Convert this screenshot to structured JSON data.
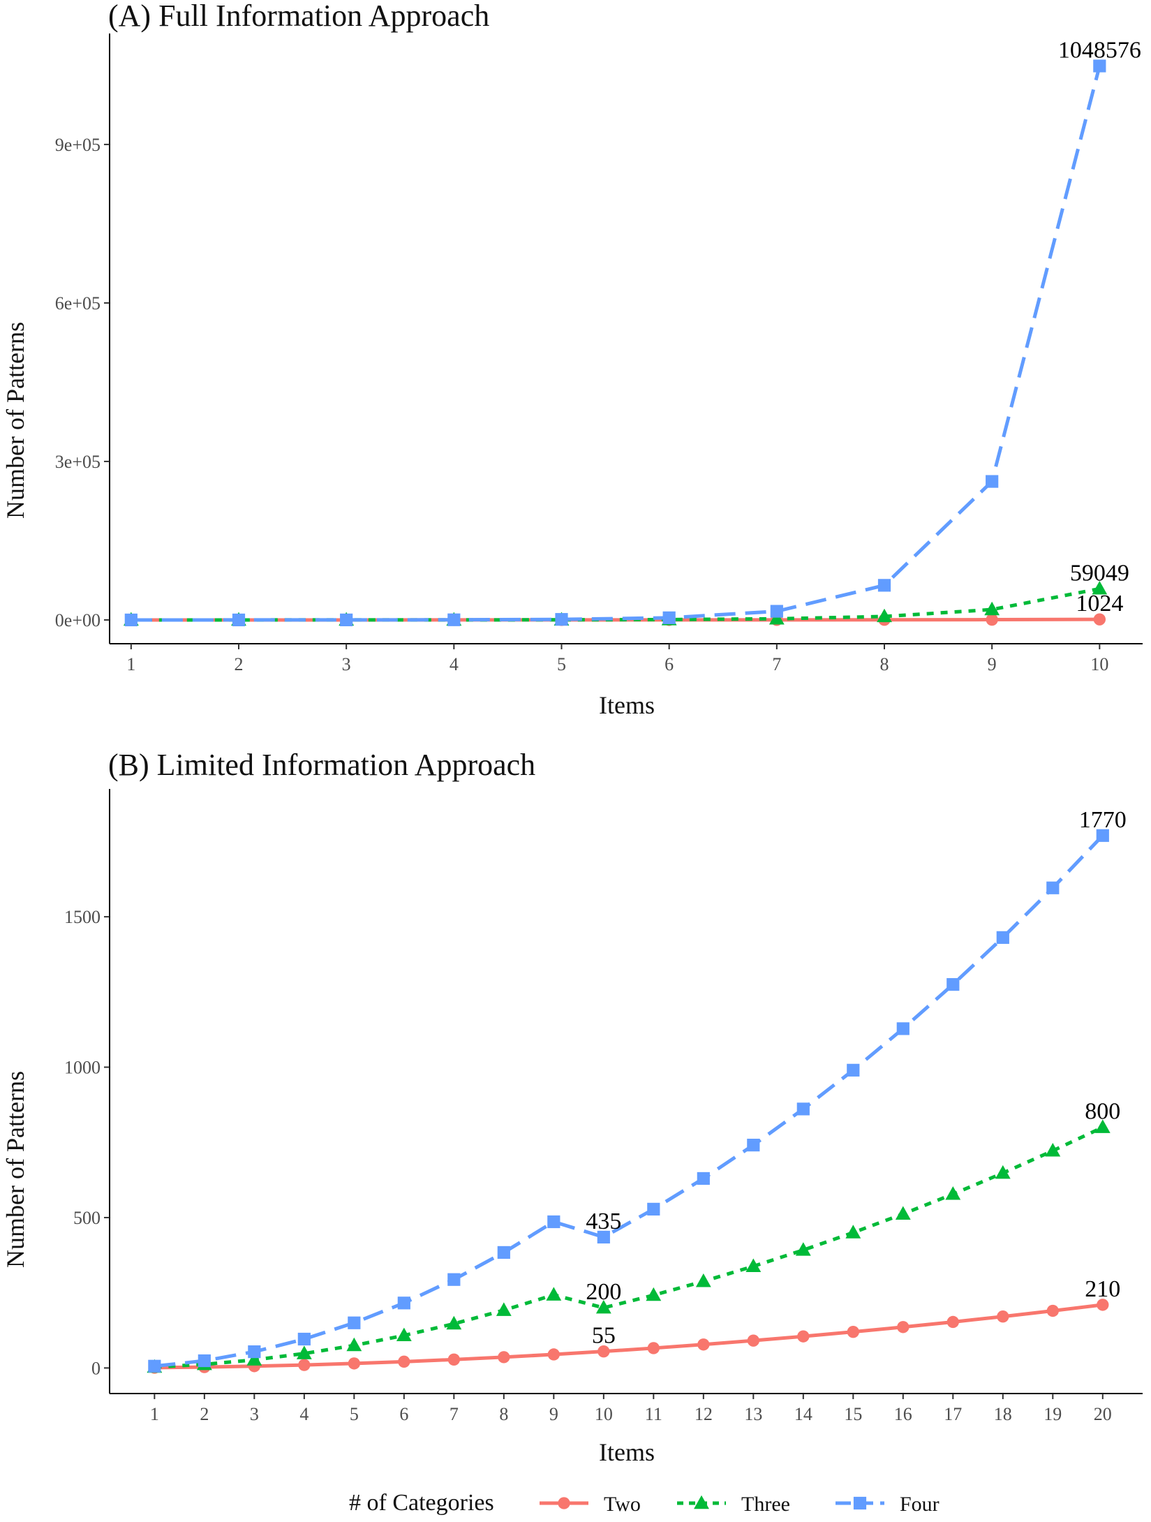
{
  "chart_data": [
    {
      "type": "line",
      "title": "(A) Full Information Approach",
      "xlabel": "Items",
      "ylabel": "Number of Patterns",
      "x": [
        1,
        2,
        3,
        4,
        5,
        6,
        7,
        8,
        9,
        10
      ],
      "xlim": [
        0.8,
        10.4
      ],
      "ylim": [
        -45000,
        1110000
      ],
      "yticks": [
        0,
        300000,
        600000,
        900000
      ],
      "ytick_labels": [
        "0e+00",
        "3e+05",
        "6e+05",
        "9e+05"
      ],
      "grid": false,
      "series": [
        {
          "name": "Two",
          "color": "#F8766D",
          "dash": "solid",
          "marker": "circle",
          "values": [
            2,
            4,
            8,
            16,
            32,
            64,
            128,
            256,
            512,
            1024
          ]
        },
        {
          "name": "Three",
          "color": "#00BA38",
          "dash": "dotted",
          "marker": "triangle",
          "values": [
            3,
            9,
            27,
            81,
            243,
            729,
            2187,
            6561,
            19683,
            59049
          ]
        },
        {
          "name": "Four",
          "color": "#619CFF",
          "dash": "dashed",
          "marker": "square",
          "values": [
            4,
            16,
            64,
            256,
            1024,
            4096,
            16384,
            65536,
            262144,
            1048576
          ]
        }
      ],
      "annotations": [
        {
          "series": "Four",
          "x": 10,
          "text": "1048576"
        },
        {
          "series": "Three",
          "x": 10,
          "text": "59049"
        },
        {
          "series": "Two",
          "x": 10,
          "text": "1024"
        }
      ]
    },
    {
      "type": "line",
      "title": "(B) Limited Information Approach",
      "xlabel": "Items",
      "ylabel": "Number of Patterns",
      "x": [
        1,
        2,
        3,
        4,
        5,
        6,
        7,
        8,
        9,
        10,
        11,
        12,
        13,
        14,
        15,
        16,
        17,
        18,
        19,
        20
      ],
      "xlim": [
        0.1,
        20.8
      ],
      "ylim": [
        -85,
        1925
      ],
      "yticks": [
        0,
        500,
        1000,
        1500
      ],
      "ytick_labels": [
        "0",
        "500",
        "1000",
        "1500"
      ],
      "grid": false,
      "series": [
        {
          "name": "Two",
          "color": "#F8766D",
          "dash": "solid",
          "marker": "circle",
          "values": [
            1,
            3,
            6,
            10,
            15,
            21,
            28,
            36,
            45,
            55,
            66,
            78,
            91,
            105,
            120,
            136,
            153,
            171,
            190,
            210
          ]
        },
        {
          "name": "Three",
          "color": "#00BA38",
          "dash": "dotted",
          "marker": "triangle",
          "values": [
            3,
            12,
            27,
            48,
            75,
            108,
            147,
            192,
            243,
            200,
            242,
            288,
            338,
            392,
            450,
            512,
            578,
            648,
            722,
            800
          ]
        },
        {
          "name": "Four",
          "color": "#619CFF",
          "dash": "dashed",
          "marker": "square",
          "values": [
            6,
            24,
            54,
            96,
            150,
            216,
            294,
            384,
            486,
            435,
            528,
            630,
            741,
            861,
            990,
            1128,
            1275,
            1431,
            1596,
            1770
          ]
        }
      ],
      "annotations": [
        {
          "series": "Four",
          "x": 20,
          "text": "1770"
        },
        {
          "series": "Three",
          "x": 20,
          "text": "800"
        },
        {
          "series": "Two",
          "x": 20,
          "text": "210"
        },
        {
          "series": "Four",
          "x": 10,
          "text": "435"
        },
        {
          "series": "Three",
          "x": 10,
          "text": "200"
        },
        {
          "series": "Two",
          "x": 10,
          "text": "55"
        }
      ]
    }
  ],
  "legend": {
    "title": "# of Categories",
    "position": "bottom",
    "items": [
      {
        "label": "Two",
        "color": "#F8766D",
        "dash": "solid",
        "marker": "circle"
      },
      {
        "label": "Three",
        "color": "#00BA38",
        "dash": "dotted",
        "marker": "triangle"
      },
      {
        "label": "Four",
        "color": "#619CFF",
        "dash": "dashed",
        "marker": "square"
      }
    ]
  }
}
